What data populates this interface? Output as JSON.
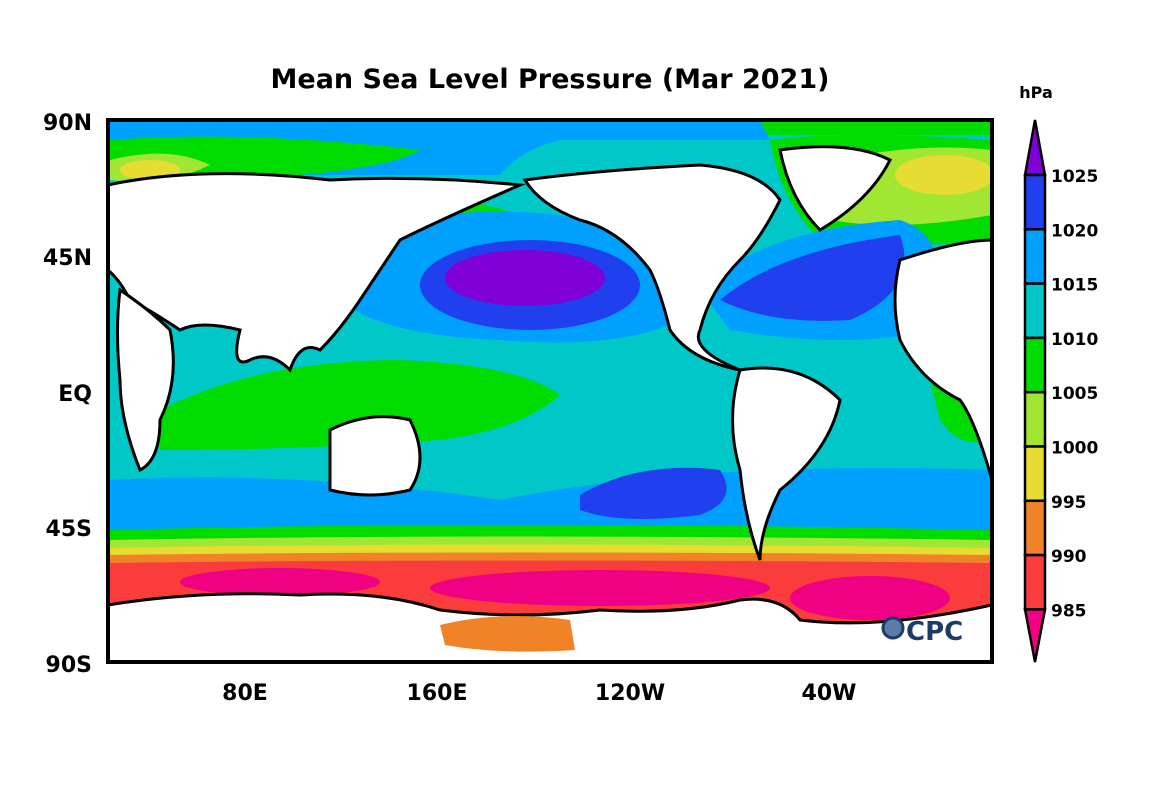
{
  "title": "Mean Sea Level Pressure (Mar 2021)",
  "units": "hPa",
  "y_ticks": [
    "90N",
    "45N",
    "EQ",
    "45S",
    "90S"
  ],
  "x_ticks": [
    "80E",
    "160E",
    "120W",
    "40W"
  ],
  "colorbar": {
    "levels": [
      "1025",
      "1020",
      "1015",
      "1010",
      "1005",
      "1000",
      "995",
      "990",
      "985"
    ],
    "colors": [
      "#8000d8",
      "#2040f0",
      "#00a0ff",
      "#00c8c8",
      "#00dc00",
      "#a0e632",
      "#e6dc32",
      "#f08228",
      "#fa3c3c",
      "#f00082"
    ]
  },
  "logo": "CPC"
}
